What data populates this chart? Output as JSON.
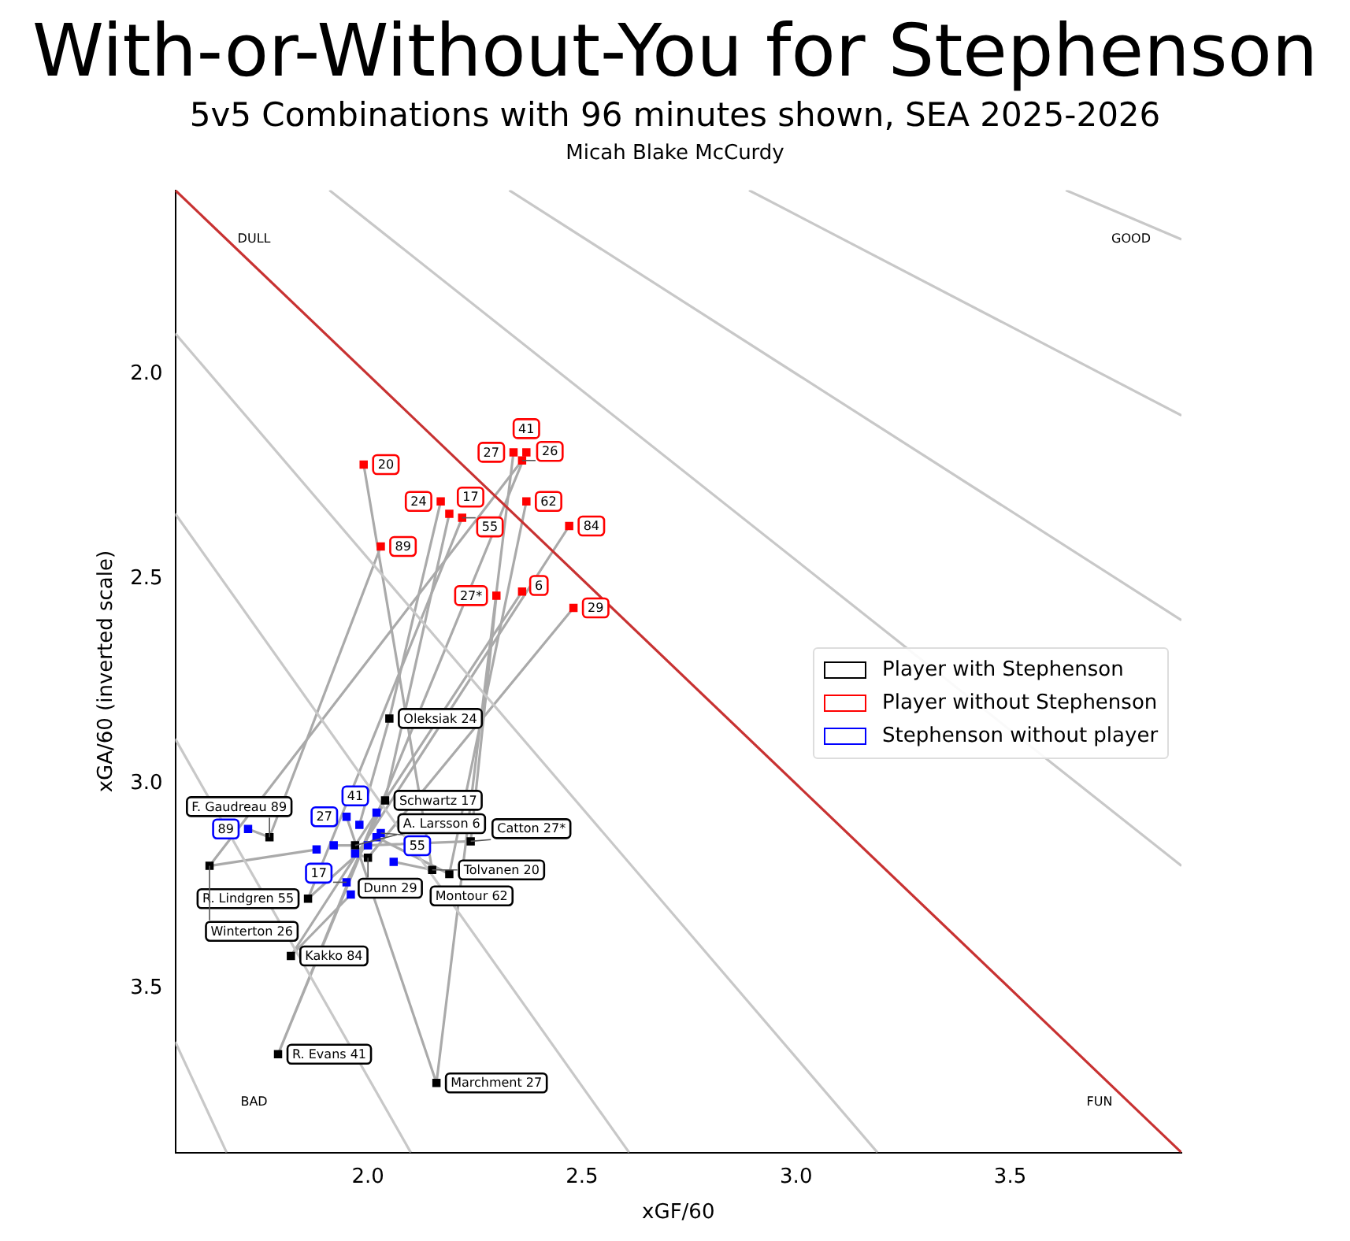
{
  "chart_data": {
    "type": "scatter",
    "title": "With-or-Without-You for Stephenson",
    "subtitle": "5v5 Combinations with 96 minutes shown, SEA 2025-2026",
    "xlabel": "xGF/60",
    "ylabel": "xGA/60 (inverted scale)",
    "xlim": [
      1.55,
      3.9
    ],
    "ylim": [
      3.9,
      1.55
    ],
    "xticks": [
      {
        "value": 2,
        "label": "2.0"
      },
      {
        "value": 2.5,
        "label": "2.5"
      },
      {
        "value": 3,
        "label": "3.0"
      },
      {
        "value": 3.5,
        "label": "3.5"
      }
    ],
    "yticks": [
      {
        "value": 2,
        "label": "2.0"
      },
      {
        "value": 2.5,
        "label": "2.5"
      },
      {
        "value": 3,
        "label": "3.0"
      },
      {
        "value": 3.5,
        "label": "3.5"
      }
    ],
    "grid": false,
    "legend": "right",
    "marker": "square",
    "annotations": [
      "Micah Blake McCurdy",
      "DULL",
      "GOOD",
      "BAD",
      "FUN",
      {
        "text": "Oleksiak 24",
        "x": 2.05,
        "y": 2.84
      },
      {
        "text": "Schwartz 17",
        "x": 2.04,
        "y": 3.04
      },
      {
        "text": "F. Gaudreau 89",
        "x": 1.77,
        "y": 3.13
      },
      {
        "text": "A. Larsson 6",
        "x": 1.97,
        "y": 3.15
      },
      {
        "text": "Catton 27*",
        "x": 2.24,
        "y": 3.14
      },
      {
        "text": "Winterton 26",
        "x": 1.63,
        "y": 3.2
      },
      {
        "text": "Dunn 29",
        "x": 2.0,
        "y": 3.18
      },
      {
        "text": "Tolvanen 20",
        "x": 2.15,
        "y": 3.21
      },
      {
        "text": "Montour 62",
        "x": 2.19,
        "y": 3.22
      },
      {
        "text": "R. Lindgren 55",
        "x": 1.86,
        "y": 3.28
      },
      {
        "text": "Kakko 84",
        "x": 1.82,
        "y": 3.42
      },
      {
        "text": "R. Evans 41",
        "x": 1.79,
        "y": 3.66
      },
      {
        "text": "Marchment 27",
        "x": 2.16,
        "y": 3.73
      },
      {
        "text": "24",
        "x": 2.17,
        "y": 2.31
      },
      {
        "text": "17",
        "x": 2.19,
        "y": 2.34
      },
      {
        "text": "89",
        "x": 2.03,
        "y": 2.42
      },
      {
        "text": "6",
        "x": 2.36,
        "y": 2.53
      },
      {
        "text": "27*",
        "x": 2.3,
        "y": 2.54
      },
      {
        "text": "26",
        "x": 2.36,
        "y": 2.21
      },
      {
        "text": "29",
        "x": 2.48,
        "y": 2.57
      },
      {
        "text": "20",
        "x": 1.99,
        "y": 2.22
      },
      {
        "text": "62",
        "x": 2.37,
        "y": 2.31
      },
      {
        "text": "55",
        "x": 2.22,
        "y": 2.35
      },
      {
        "text": "84",
        "x": 2.47,
        "y": 2.37
      },
      {
        "text": "41",
        "x": 2.37,
        "y": 2.19
      },
      {
        "text": "27",
        "x": 2.34,
        "y": 2.19
      },
      {
        "text": "89",
        "x": 1.72,
        "y": 3.11
      },
      {
        "text": "27",
        "x": 1.95,
        "y": 3.08
      },
      {
        "text": "41",
        "x": 2.02,
        "y": 3.07
      },
      {
        "text": "55",
        "x": 2.03,
        "y": 3.12
      },
      {
        "text": "17",
        "x": 1.95,
        "y": 3.24
      }
    ],
    "series": [
      {
        "type": "line",
        "marker": "none",
        "color": "#c8c8c8",
        "x": [
          1.91,
          3.9
        ],
        "values": [
          1.55,
          3.2
        ]
      },
      {
        "type": "line",
        "marker": "none",
        "color": "#c8c8c8",
        "x": [
          2.33,
          3.9
        ],
        "values": [
          1.55,
          2.6
        ]
      },
      {
        "type": "line",
        "marker": "none",
        "color": "#c8c8c8",
        "x": [
          2.89,
          3.9
        ],
        "values": [
          1.55,
          2.1
        ]
      },
      {
        "type": "line",
        "marker": "none",
        "color": "#c8c8c8",
        "x": [
          3.63,
          3.9
        ],
        "values": [
          1.55,
          1.67
        ]
      },
      {
        "type": "line",
        "marker": "none",
        "color": "#c8c8c8",
        "x": [
          1.55,
          3.19
        ],
        "values": [
          1.9,
          3.9
        ]
      },
      {
        "type": "line",
        "marker": "none",
        "color": "#c8c8c8",
        "x": [
          1.55,
          2.61
        ],
        "values": [
          2.34,
          3.9
        ]
      },
      {
        "type": "line",
        "marker": "none",
        "color": "#c8c8c8",
        "x": [
          1.55,
          2.1
        ],
        "values": [
          2.89,
          3.9
        ]
      },
      {
        "type": "line",
        "marker": "none",
        "color": "#c8c8c8",
        "x": [
          1.55,
          1.67
        ],
        "values": [
          3.63,
          3.9
        ]
      },
      {
        "type": "line",
        "marker": "none",
        "color": "#c83232",
        "x": [
          1.55,
          3.9
        ],
        "values": [
          1.55,
          3.9
        ]
      },
      {
        "type": "line",
        "marker": "none",
        "color": "#aaaaaa",
        "x": [
          2.17,
          2.05,
          1.98
        ],
        "values": [
          2.31,
          2.84,
          3.1
        ]
      },
      {
        "type": "line",
        "marker": "none",
        "color": "#aaaaaa",
        "x": [
          2.19,
          2.04,
          1.95
        ],
        "values": [
          2.34,
          3.04,
          3.24
        ]
      },
      {
        "type": "line",
        "marker": "none",
        "color": "#aaaaaa",
        "x": [
          2.03,
          1.77,
          1.72
        ],
        "values": [
          2.42,
          3.13,
          3.11
        ]
      },
      {
        "type": "line",
        "marker": "none",
        "color": "#aaaaaa",
        "x": [
          2.36,
          1.97,
          1.92
        ],
        "values": [
          2.53,
          3.15,
          3.15
        ]
      },
      {
        "type": "line",
        "marker": "none",
        "color": "#aaaaaa",
        "x": [
          2.3,
          2.24,
          2.0
        ],
        "values": [
          2.54,
          3.14,
          3.15
        ]
      },
      {
        "type": "line",
        "marker": "none",
        "color": "#aaaaaa",
        "x": [
          2.36,
          1.63,
          1.88
        ],
        "values": [
          2.21,
          3.2,
          3.16
        ]
      },
      {
        "type": "line",
        "marker": "none",
        "color": "#aaaaaa",
        "x": [
          2.48,
          2.0,
          1.97
        ],
        "values": [
          2.57,
          3.18,
          3.17
        ]
      },
      {
        "type": "line",
        "marker": "none",
        "color": "#aaaaaa",
        "x": [
          1.99,
          2.15,
          2.06
        ],
        "values": [
          2.22,
          3.21,
          3.19
        ]
      },
      {
        "type": "line",
        "marker": "none",
        "color": "#aaaaaa",
        "x": [
          2.37,
          2.19,
          2.02
        ],
        "values": [
          2.31,
          3.22,
          3.13
        ]
      },
      {
        "type": "line",
        "marker": "none",
        "color": "#aaaaaa",
        "x": [
          2.22,
          1.86,
          2.03
        ],
        "values": [
          2.35,
          3.28,
          3.12
        ]
      },
      {
        "type": "line",
        "marker": "none",
        "color": "#aaaaaa",
        "x": [
          2.47,
          1.82,
          1.96
        ],
        "values": [
          2.37,
          3.42,
          3.27
        ]
      },
      {
        "type": "line",
        "marker": "none",
        "color": "#aaaaaa",
        "x": [
          2.37,
          1.79,
          2.02
        ],
        "values": [
          2.19,
          3.66,
          3.07
        ]
      },
      {
        "type": "line",
        "marker": "none",
        "color": "#aaaaaa",
        "x": [
          2.34,
          2.16,
          1.95
        ],
        "values": [
          2.19,
          3.73,
          3.08
        ]
      },
      {
        "name": "Stephenson without player",
        "color": "#0000ff",
        "x": [
          1.98,
          1.95,
          1.72,
          1.92,
          2.0,
          1.88,
          1.97,
          2.06,
          2.02,
          2.03,
          1.96,
          2.02,
          1.95
        ],
        "values": [
          3.1,
          3.24,
          3.11,
          3.15,
          3.15,
          3.16,
          3.17,
          3.19,
          3.13,
          3.12,
          3.27,
          3.07,
          3.08
        ]
      },
      {
        "name": "Player without Stephenson",
        "color": "#ff0000",
        "x": [
          2.17,
          2.19,
          2.03,
          2.36,
          2.3,
          2.36,
          2.48,
          1.99,
          2.37,
          2.22,
          2.47,
          2.37,
          2.34
        ],
        "values": [
          2.31,
          2.34,
          2.42,
          2.53,
          2.54,
          2.21,
          2.57,
          2.22,
          2.31,
          2.35,
          2.37,
          2.19,
          2.19
        ]
      },
      {
        "name": "Player with Stephenson",
        "color": "#000000",
        "x": [
          2.05,
          2.04,
          1.77,
          1.97,
          2.24,
          1.63,
          2.0,
          2.15,
          2.19,
          1.86,
          1.82,
          1.79,
          2.16
        ],
        "values": [
          2.84,
          3.04,
          3.13,
          3.15,
          3.14,
          3.2,
          3.18,
          3.21,
          3.22,
          3.28,
          3.42,
          3.66,
          3.73
        ]
      }
    ]
  }
}
